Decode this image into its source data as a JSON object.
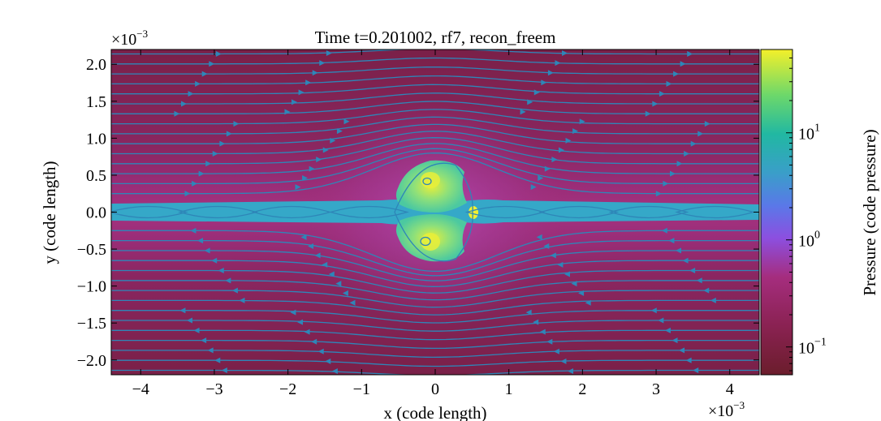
{
  "chart_data": {
    "type": "heatmap",
    "title": "Time t=0.201002, rf7, recon_freem",
    "xlabel": "x  (code length)",
    "ylabel": "y  (code length)",
    "x_multiplier": "×10",
    "x_multiplier_exp": "−3",
    "y_multiplier": "×10",
    "y_multiplier_exp": "−3",
    "xlim": [
      -4.4,
      4.4
    ],
    "ylim": [
      -2.2,
      2.2
    ],
    "x_ticks": [
      -4,
      -3,
      -2,
      -1,
      0,
      1,
      2,
      3,
      4
    ],
    "x_tick_labels": [
      "−4",
      "−3",
      "−2",
      "−1",
      "0",
      "1",
      "2",
      "3",
      "4"
    ],
    "y_ticks": [
      2.0,
      1.5,
      1.0,
      0.5,
      0.0,
      -0.5,
      -1.0,
      -1.5,
      -2.0
    ],
    "y_tick_labels": [
      "2.0",
      "1.5",
      "1.0",
      "0.5",
      "0.0",
      "−0.5",
      "−1.0",
      "−1.5",
      "−2.0"
    ],
    "colorbar": {
      "label": "Pressure  (code pressure)",
      "scale": "log",
      "range": [
        0.055,
        60
      ],
      "colormap": "viridis_r over purple-maroon",
      "ticks": [
        0.1,
        1,
        10
      ],
      "tick_bases": [
        "10",
        "10",
        "10"
      ],
      "tick_exps": [
        "−1",
        "0",
        "1"
      ]
    },
    "features": {
      "background_pressure": 0.2,
      "current_sheet_pressure": 2.5,
      "plasmoid_core_pressure": 30,
      "plasmoid_center": [
        0.0,
        0.0
      ],
      "streamlines": true,
      "streamline_color": "#2e86b8"
    },
    "colors": {
      "background_low": "#7a2145",
      "background_mid": "#a4307f",
      "sheet": "#35a8c8",
      "core_green": "#7fe07a",
      "core_yellow": "#e8ee3a"
    }
  }
}
